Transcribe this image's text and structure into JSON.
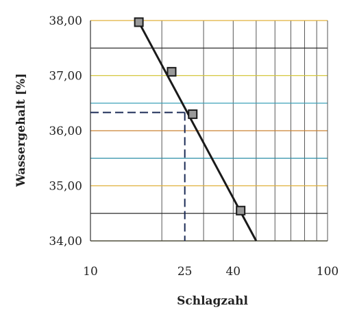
{
  "chart_data": {
    "type": "scatter",
    "title": "",
    "xlabel": "Schlagzahl",
    "ylabel": "Wassergehalt [%]",
    "x_scale": "log",
    "xlim": [
      10,
      100
    ],
    "ylim": [
      34.0,
      38.0
    ],
    "x_tick_labels": [
      "10",
      "25",
      "40",
      "100"
    ],
    "y_tick_labels": [
      "34,00",
      "35,00",
      "36,00",
      "37,00",
      "38,00"
    ],
    "grid": true,
    "series": [
      {
        "points": [
          {
            "x": 16,
            "y": 37.97
          },
          {
            "x": 22,
            "y": 37.07
          },
          {
            "x": 27,
            "y": 36.3
          },
          {
            "x": 43,
            "y": 34.55
          }
        ]
      }
    ],
    "trendline": {
      "x": [
        16,
        50
      ],
      "y": [
        37.97,
        34.0
      ]
    },
    "reading": {
      "x": 25,
      "y": 36.33
    }
  },
  "colors": {
    "trendline": "#1a1a1a",
    "marker_fill": "#9a9a9a",
    "marker_stroke": "#1a1a1a",
    "vertical_grid": "#555555",
    "grid_cycle": [
      "#d4c63a",
      "#2b2b2b",
      "#e0b03a",
      "#2c8fa8",
      "#c98030",
      "#3aa0b8"
    ],
    "reading_line": "#1a2a55"
  }
}
